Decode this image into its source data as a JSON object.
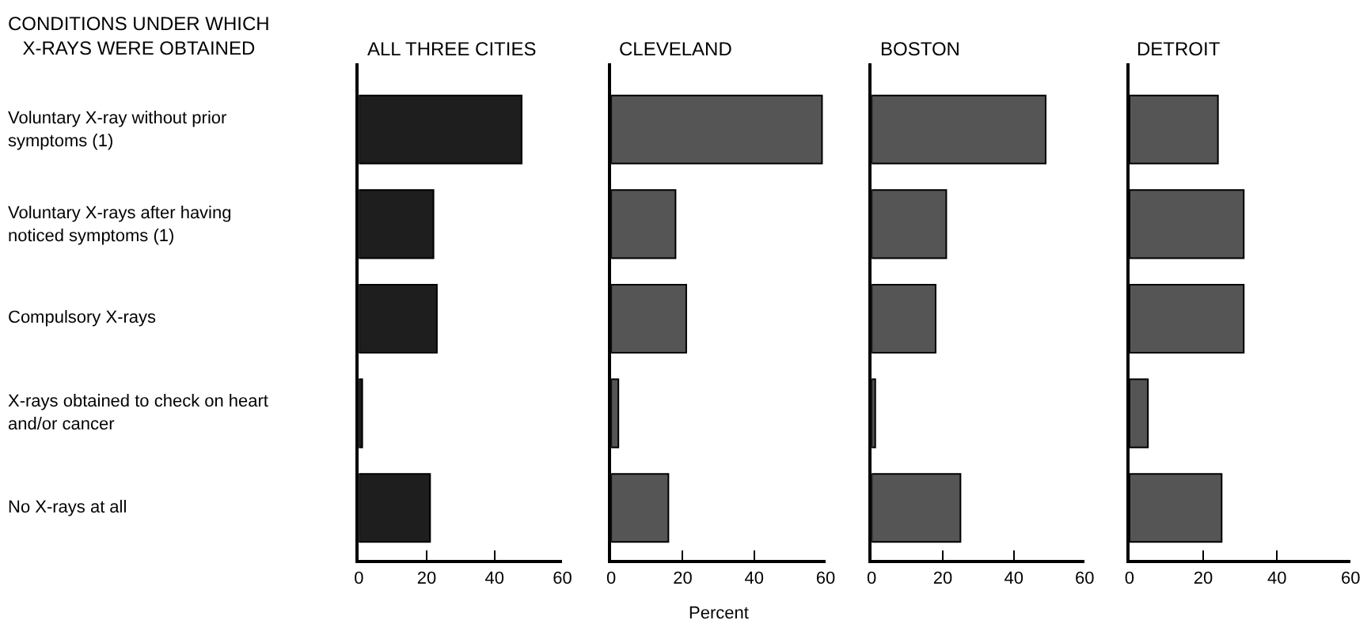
{
  "chart_data": [
    {
      "type": "bar",
      "orientation": "horizontal",
      "title": "ALL THREE CITIES",
      "ylabel": "CONDITIONS UNDER WHICH X-RAYS WERE OBTAINED",
      "categories": [
        "Voluntary X-ray without prior symptoms (1)",
        "Voluntary X-rays after having noticed symptoms (1)",
        "Compulsory X-rays",
        "X-rays obtained to check on heart and/or cancer",
        "No X-rays at all"
      ],
      "values": [
        48,
        22,
        23,
        1,
        21
      ],
      "color": "#1e1e1e",
      "xlim": [
        0,
        60
      ],
      "xticks": [
        0,
        20,
        40,
        60
      ]
    },
    {
      "type": "bar",
      "orientation": "horizontal",
      "title": "CLEVELAND",
      "xlabel": "Percent",
      "categories": [
        "Voluntary X-ray without prior symptoms (1)",
        "Voluntary X-rays after having noticed symptoms (1)",
        "Compulsory X-rays",
        "X-rays obtained to check on heart and/or cancer",
        "No X-rays at all"
      ],
      "values": [
        59,
        18,
        21,
        2,
        16
      ],
      "color": "#555555",
      "xlim": [
        0,
        60
      ],
      "xticks": [
        0,
        20,
        40,
        60
      ],
      "tick_labels": "x"
    },
    {
      "type": "bar",
      "orientation": "horizontal",
      "title": "BOSTON",
      "categories": [
        "Voluntary X-ray without prior symptoms (1)",
        "Voluntary X-rays after having noticed symptoms (1)",
        "Compulsory X-rays",
        "X-rays obtained to check on heart and/or cancer",
        "No X-rays at all"
      ],
      "values": [
        49,
        21,
        18,
        1,
        25
      ],
      "color": "#555555",
      "xlim": [
        0,
        60
      ],
      "xticks": [
        0,
        20,
        40,
        60
      ],
      "tick_labels": "x"
    },
    {
      "type": "bar",
      "orientation": "horizontal",
      "title": "DETROIT",
      "categories": [
        "Voluntary X-ray without prior symptoms (1)",
        "Voluntary X-rays after having noticed symptoms (1)",
        "Compulsory X-rays",
        "X-rays obtained to check on heart and/or cancer",
        "No X-rays at all"
      ],
      "values": [
        24,
        31,
        31,
        5,
        25
      ],
      "color": "#555555",
      "xlim": [
        0,
        60
      ],
      "xticks": [
        0,
        20,
        40,
        60
      ],
      "tick_labels": "x"
    }
  ]
}
